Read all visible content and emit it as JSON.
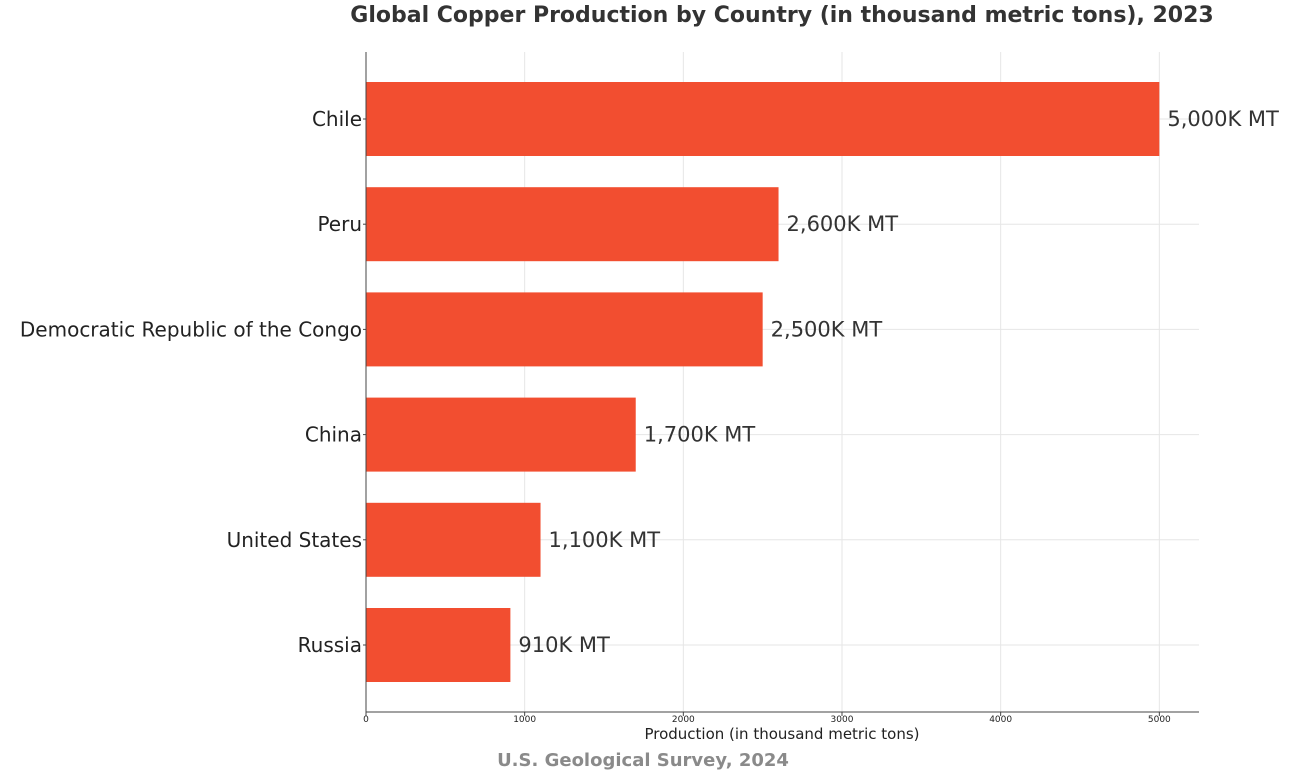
{
  "chart_data": {
    "type": "bar",
    "orientation": "horizontal",
    "title": "Global Copper Production by Country (in thousand metric tons), 2023",
    "xlabel": "Production (in thousand metric tons)",
    "ylabel": "",
    "categories": [
      "Chile",
      "Peru",
      "Democratic Republic of the Congo",
      "China",
      "United States",
      "Russia"
    ],
    "values": [
      5000,
      2600,
      2500,
      1700,
      1100,
      910
    ],
    "value_labels": [
      "5,000K MT",
      "2,600K MT",
      "2,500K MT",
      "1,700K MT",
      "1,100K MT",
      "910K MT"
    ],
    "xlim": [
      0,
      5250
    ],
    "x_ticks": [
      0,
      1000,
      2000,
      3000,
      4000,
      5000
    ],
    "x_tick_labels": [
      "0",
      "1000",
      "2000",
      "3000",
      "4000",
      "5000"
    ],
    "grid": true,
    "bar_color": "#f24e30",
    "source": "U.S. Geological Survey, 2024"
  }
}
